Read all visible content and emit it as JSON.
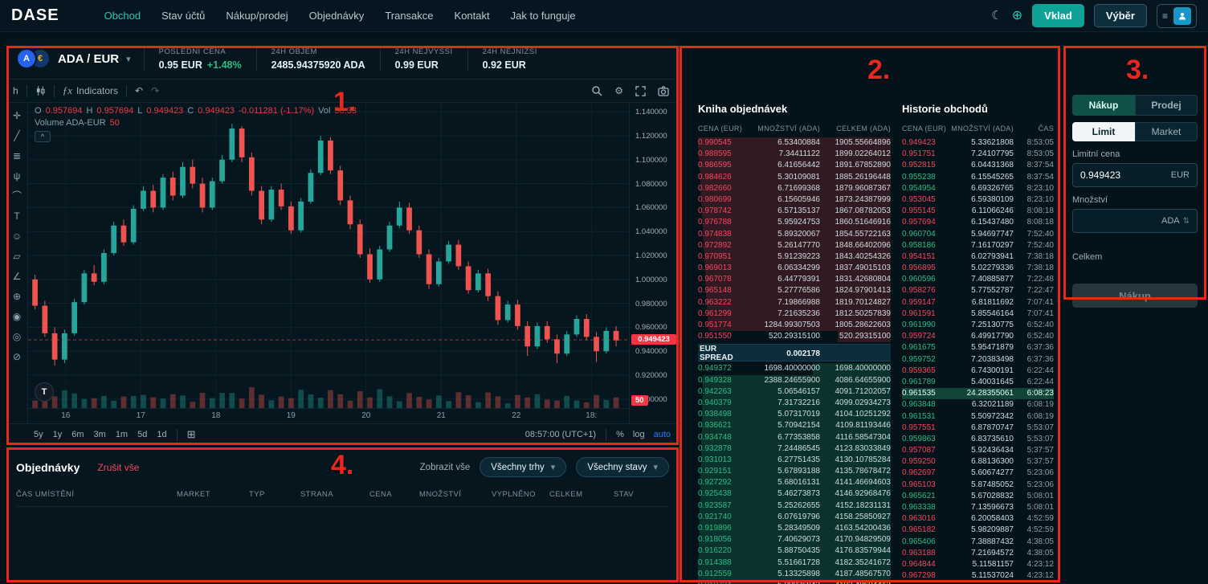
{
  "annotations": {
    "labels": [
      "1.",
      "2.",
      "3.",
      "4."
    ],
    "color": "#e8271d"
  },
  "icons": {
    "moon": "☾",
    "globe": "⊕",
    "menu": "≡",
    "chevron_down": "▾",
    "undo": "↶",
    "redo": "↷",
    "collapse": "^",
    "calendar": "⊞",
    "gear": "⚙",
    "swap": "⇅",
    "tv": "T"
  },
  "topnav": {
    "logo": "DASE",
    "links": [
      {
        "label": "Obchod",
        "active": true
      },
      {
        "label": "Stav účtů",
        "active": false
      },
      {
        "label": "Nákup/prodej",
        "active": false
      },
      {
        "label": "Objednávky",
        "active": false
      },
      {
        "label": "Transakce",
        "active": false
      },
      {
        "label": "Kontakt",
        "active": false
      },
      {
        "label": "Jak to funguje",
        "active": false
      }
    ],
    "deposit_label": "Vklad",
    "withdraw_label": "Výběr"
  },
  "market_header": {
    "pair": "ADA / EUR",
    "base_symbol": "A",
    "quote_symbol": "€",
    "stats": [
      {
        "label": "POSLEDNÍ CENA",
        "value": "0.95 EUR",
        "extra": "+1.48%"
      },
      {
        "label": "24H OBJEM",
        "value": "2485.94375920 ADA",
        "extra": ""
      },
      {
        "label": "24H NEJVYŠŠÍ",
        "value": "0.99 EUR",
        "extra": ""
      },
      {
        "label": "24H NEJNIŽŠÍ",
        "value": "0.92 EUR",
        "extra": ""
      }
    ]
  },
  "chart": {
    "toolbar": {
      "interval": "h",
      "fx": "ƒx",
      "indicators": "Indicators"
    },
    "tools": [
      {
        "name": "crosshair",
        "glyph": "✛"
      },
      {
        "name": "trend-line",
        "glyph": "╱"
      },
      {
        "name": "fib-retracement",
        "glyph": "≣"
      },
      {
        "name": "pitchfork",
        "glyph": "ψ"
      },
      {
        "name": "curve",
        "glyph": "⌒"
      },
      {
        "name": "text",
        "glyph": "T"
      },
      {
        "name": "emoji",
        "glyph": "☺"
      },
      {
        "name": "pattern",
        "glyph": "▱"
      },
      {
        "name": "measure",
        "glyph": "∠"
      },
      {
        "name": "zoom",
        "glyph": "⊕"
      },
      {
        "name": "magnet",
        "glyph": "◉"
      },
      {
        "name": "eye",
        "glyph": "◎"
      },
      {
        "name": "remove-drawings",
        "glyph": "⊘"
      }
    ],
    "legend": {
      "o_label": "O",
      "o": "0.957694",
      "h_label": "H",
      "h": "0.957694",
      "l_label": "L",
      "l": "0.949423",
      "c_label": "C",
      "c": "0.949423",
      "change": "-0.011281 (-1.17%)",
      "vol_label": "Vol",
      "vol": "50.33",
      "volume_series_label": "Volume ADA-EUR",
      "volume_value": "50"
    },
    "price_ticks": [
      "1.140000",
      "1.120000",
      "1.100000",
      "1.080000",
      "1.060000",
      "1.040000",
      "1.020000",
      "1.000000",
      "0.980000",
      "0.960000",
      "0.940000",
      "0.920000",
      "0.900000"
    ],
    "price_min": 0.8925,
    "price_max": 1.1475,
    "last_price": "0.949423",
    "last_price_value": 0.949423,
    "vol_badge": "50",
    "time_labels": [
      "16",
      "17",
      "18",
      "19",
      "20",
      "21",
      "22",
      "18:"
    ],
    "candles": [
      [
        1.0,
        1.004,
        0.975,
        0.978
      ],
      [
        0.978,
        0.982,
        0.952,
        0.955
      ],
      [
        0.955,
        0.96,
        0.928,
        0.933
      ],
      [
        0.933,
        0.958,
        0.93,
        0.955
      ],
      [
        0.955,
        0.984,
        0.953,
        0.981
      ],
      [
        0.981,
        1.008,
        0.979,
        1.005
      ],
      [
        1.005,
        1.012,
        0.995,
        0.998
      ],
      [
        0.998,
        1.025,
        0.996,
        1.022
      ],
      [
        1.022,
        1.048,
        1.02,
        1.045
      ],
      [
        1.045,
        1.05,
        1.028,
        1.031
      ],
      [
        1.031,
        1.062,
        1.029,
        1.059
      ],
      [
        1.059,
        1.078,
        1.057,
        1.074
      ],
      [
        1.074,
        1.079,
        1.056,
        1.06
      ],
      [
        1.06,
        1.088,
        1.058,
        1.085
      ],
      [
        1.085,
        1.09,
        1.066,
        1.07
      ],
      [
        1.07,
        1.098,
        1.068,
        1.094
      ],
      [
        1.094,
        1.1,
        1.076,
        1.08
      ],
      [
        1.08,
        1.085,
        1.056,
        1.06
      ],
      [
        1.06,
        1.085,
        1.058,
        1.082
      ],
      [
        1.082,
        1.104,
        1.08,
        1.1
      ],
      [
        1.1,
        1.13,
        1.098,
        1.126
      ],
      [
        1.126,
        1.128,
        1.098,
        1.102
      ],
      [
        1.102,
        1.106,
        1.07,
        1.074
      ],
      [
        1.074,
        1.078,
        1.046,
        1.05
      ],
      [
        1.05,
        1.078,
        1.048,
        1.075
      ],
      [
        1.075,
        1.08,
        1.058,
        1.061
      ],
      [
        1.061,
        1.065,
        1.038,
        1.041
      ],
      [
        1.041,
        1.068,
        1.039,
        1.065
      ],
      [
        1.065,
        1.092,
        1.063,
        1.089
      ],
      [
        1.089,
        1.12,
        1.087,
        1.116
      ],
      [
        1.116,
        1.119,
        1.088,
        1.091
      ],
      [
        1.091,
        1.095,
        1.062,
        1.066
      ],
      [
        1.066,
        1.07,
        1.042,
        1.046
      ],
      [
        1.046,
        1.05,
        1.018,
        1.021
      ],
      [
        1.021,
        1.026,
        0.997,
        1.0
      ],
      [
        1.0,
        1.028,
        0.998,
        1.025
      ],
      [
        1.025,
        1.048,
        1.023,
        1.045
      ],
      [
        1.045,
        1.065,
        1.043,
        1.06
      ],
      [
        1.06,
        1.064,
        1.038,
        1.041
      ],
      [
        1.041,
        1.045,
        1.018,
        1.021
      ],
      [
        1.021,
        1.025,
        0.992,
        0.996
      ],
      [
        0.996,
        1.018,
        0.994,
        1.015
      ],
      [
        1.015,
        1.032,
        1.013,
        1.029
      ],
      [
        1.029,
        1.033,
        1.008,
        1.011
      ],
      [
        1.011,
        1.015,
        0.988,
        0.991
      ],
      [
        0.991,
        1.008,
        0.989,
        1.005
      ],
      [
        1.005,
        1.009,
        0.982,
        0.986
      ],
      [
        0.986,
        0.99,
        0.962,
        0.966
      ],
      [
        0.966,
        0.982,
        0.964,
        0.979
      ],
      [
        0.979,
        0.983,
        0.958,
        0.961
      ],
      [
        0.961,
        0.965,
        0.936,
        0.944
      ],
      [
        0.944,
        0.964,
        0.942,
        0.961
      ],
      [
        0.961,
        0.965,
        0.947,
        0.95
      ],
      [
        0.95,
        0.954,
        0.93,
        0.938
      ],
      [
        0.938,
        0.957,
        0.936,
        0.954
      ],
      [
        0.954,
        0.97,
        0.952,
        0.967
      ],
      [
        0.967,
        0.971,
        0.949,
        0.952
      ],
      [
        0.952,
        0.956,
        0.931,
        0.94
      ],
      [
        0.94,
        0.96,
        0.938,
        0.957
      ],
      [
        0.957,
        0.961,
        0.944,
        0.949
      ]
    ],
    "ranges": [
      "5y",
      "1y",
      "6m",
      "3m",
      "1m",
      "5d",
      "1d"
    ],
    "clock": "08:57:00 (UTC+1)",
    "scale_buttons": [
      "%",
      "log",
      "auto"
    ]
  },
  "orderbook": {
    "title": "Kniha objednávek",
    "headers": [
      "CENA (EUR)",
      "MNOŽSTVÍ (ADA)",
      "CELKEM (ADA)"
    ],
    "asks": [
      [
        "0.990545",
        "6.53400884",
        "1905.55664896"
      ],
      [
        "0.988595",
        "7.34411122",
        "1899.02264012"
      ],
      [
        "0.986595",
        "6.41656442",
        "1891.67852890"
      ],
      [
        "0.984626",
        "5.30109081",
        "1885.26196448"
      ],
      [
        "0.982660",
        "6.71699368",
        "1879.96087367"
      ],
      [
        "0.980699",
        "6.15605946",
        "1873.24387999"
      ],
      [
        "0.978742",
        "6.57135137",
        "1867.08782053"
      ],
      [
        "0.976788",
        "5.95924753",
        "1860.51646916"
      ],
      [
        "0.974838",
        "5.89320067",
        "1854.55722163"
      ],
      [
        "0.972892",
        "5.26147770",
        "1848.66402096"
      ],
      [
        "0.970951",
        "5.91239223",
        "1843.40254326"
      ],
      [
        "0.969013",
        "6.06334299",
        "1837.49015103"
      ],
      [
        "0.967078",
        "6.44779391",
        "1831.42680804"
      ],
      [
        "0.965148",
        "5.27776586",
        "1824.97901413"
      ],
      [
        "0.963222",
        "7.19866988",
        "1819.70124827"
      ],
      [
        "0.961299",
        "7.21635236",
        "1812.50257839"
      ],
      [
        "0.951774",
        "1284.99307503",
        "1805.28622603"
      ],
      [
        "0.951550",
        "520.29315100",
        "520.29315100"
      ]
    ],
    "spread_label": "EUR SPREAD",
    "spread_value": "0.002178",
    "bids": [
      [
        "0.949372",
        "1698.40000000",
        "1698.40000000"
      ],
      [
        "0.949328",
        "2388.24655900",
        "4086.64655900"
      ],
      [
        "0.942263",
        "5.06546157",
        "4091.71202057"
      ],
      [
        "0.940379",
        "7.31732216",
        "4099.02934273"
      ],
      [
        "0.938498",
        "5.07317019",
        "4104.10251292"
      ],
      [
        "0.936621",
        "5.70942154",
        "4109.81193446"
      ],
      [
        "0.934748",
        "6.77353858",
        "4116.58547304"
      ],
      [
        "0.932878",
        "7.24486545",
        "4123.83033849"
      ],
      [
        "0.931013",
        "6.27751435",
        "4130.10785284"
      ],
      [
        "0.929151",
        "5.67893188",
        "4135.78678472"
      ],
      [
        "0.927292",
        "5.68016131",
        "4141.46694603"
      ],
      [
        "0.925438",
        "5.46273873",
        "4146.92968476"
      ],
      [
        "0.923587",
        "5.25262655",
        "4152.18231131"
      ],
      [
        "0.921740",
        "6.07619796",
        "4158.25850927"
      ],
      [
        "0.919896",
        "5.28349509",
        "4163.54200436"
      ],
      [
        "0.918056",
        "7.40629073",
        "4170.94829509"
      ],
      [
        "0.916220",
        "5.88750435",
        "4176.83579944"
      ],
      [
        "0.914388",
        "5.51661728",
        "4182.35241672"
      ],
      [
        "0.912559",
        "5.13325898",
        "4187.48567570"
      ],
      [
        "0.910734",
        "5.00036842",
        "4192.48604412"
      ]
    ]
  },
  "history": {
    "title": "Historie obchodů",
    "headers": [
      "CENA (EUR)",
      "MNOŽSTVÍ (ADA)",
      "ČAS"
    ],
    "rows": [
      {
        "price": "0.949423",
        "amount": "5.33621808",
        "time": "8:53:05",
        "side": "down",
        "highlight": false
      },
      {
        "price": "0.951751",
        "amount": "7.24107795",
        "time": "8:53:05",
        "side": "down",
        "highlight": false
      },
      {
        "price": "0.952815",
        "amount": "6.04431368",
        "time": "8:37:54",
        "side": "down",
        "highlight": false
      },
      {
        "price": "0.955238",
        "amount": "6.15545265",
        "time": "8:37:54",
        "side": "up",
        "highlight": false
      },
      {
        "price": "0.954954",
        "amount": "6.69326765",
        "time": "8:23:10",
        "side": "up",
        "highlight": false
      },
      {
        "price": "0.953045",
        "amount": "6.59380109",
        "time": "8:23:10",
        "side": "down",
        "highlight": false
      },
      {
        "price": "0.955145",
        "amount": "6.11066246",
        "time": "8:08:18",
        "side": "down",
        "highlight": false
      },
      {
        "price": "0.957694",
        "amount": "6.15437480",
        "time": "8:08:18",
        "side": "down",
        "highlight": false
      },
      {
        "price": "0.960704",
        "amount": "5.94697747",
        "time": "7:52:40",
        "side": "up",
        "highlight": false
      },
      {
        "price": "0.958186",
        "amount": "7.16170297",
        "time": "7:52:40",
        "side": "up",
        "highlight": false
      },
      {
        "price": "0.954151",
        "amount": "6.02793941",
        "time": "7:38:18",
        "side": "down",
        "highlight": false
      },
      {
        "price": "0.956895",
        "amount": "5.02279336",
        "time": "7:38:18",
        "side": "down",
        "highlight": false
      },
      {
        "price": "0.960596",
        "amount": "7.40885877",
        "time": "7:22:48",
        "side": "up",
        "highlight": false
      },
      {
        "price": "0.958276",
        "amount": "5.77552787",
        "time": "7:22:47",
        "side": "down",
        "highlight": false
      },
      {
        "price": "0.959147",
        "amount": "6.81811692",
        "time": "7:07:41",
        "side": "down",
        "highlight": false
      },
      {
        "price": "0.961591",
        "amount": "5.85546164",
        "time": "7:07:41",
        "side": "down",
        "highlight": false
      },
      {
        "price": "0.961990",
        "amount": "7.25130775",
        "time": "6:52:40",
        "side": "up",
        "highlight": false
      },
      {
        "price": "0.959724",
        "amount": "6.49917790",
        "time": "6:52:40",
        "side": "down",
        "highlight": false
      },
      {
        "price": "0.961675",
        "amount": "5.95471879",
        "time": "6:37:36",
        "side": "up",
        "highlight": false
      },
      {
        "price": "0.959752",
        "amount": "7.20383498",
        "time": "6:37:36",
        "side": "up",
        "highlight": false
      },
      {
        "price": "0.959365",
        "amount": "6.74300191",
        "time": "6:22:44",
        "side": "down",
        "highlight": false
      },
      {
        "price": "0.961789",
        "amount": "5.40031645",
        "time": "6:22:44",
        "side": "up",
        "highlight": false
      },
      {
        "price": "0.961535",
        "amount": "24.28355061",
        "time": "6:08:23",
        "side": "up",
        "highlight": true
      },
      {
        "price": "0.963848",
        "amount": "6.32021189",
        "time": "6:08:19",
        "side": "up",
        "highlight": false
      },
      {
        "price": "0.961531",
        "amount": "5.50972342",
        "time": "6:08:19",
        "side": "up",
        "highlight": false
      },
      {
        "price": "0.957551",
        "amount": "6.87870747",
        "time": "5:53:07",
        "side": "down",
        "highlight": false
      },
      {
        "price": "0.959863",
        "amount": "6.83735610",
        "time": "5:53:07",
        "side": "up",
        "highlight": false
      },
      {
        "price": "0.957087",
        "amount": "5.92436434",
        "time": "5:37:57",
        "side": "down",
        "highlight": false
      },
      {
        "price": "0.959250",
        "amount": "6.88136300",
        "time": "5:37:57",
        "side": "down",
        "highlight": false
      },
      {
        "price": "0.962697",
        "amount": "5.60674277",
        "time": "5:23:06",
        "side": "down",
        "highlight": false
      },
      {
        "price": "0.965103",
        "amount": "5.87485052",
        "time": "5:23:06",
        "side": "down",
        "highlight": false
      },
      {
        "price": "0.965621",
        "amount": "5.67028832",
        "time": "5:08:01",
        "side": "up",
        "highlight": false
      },
      {
        "price": "0.963338",
        "amount": "7.13596673",
        "time": "5:08:01",
        "side": "up",
        "highlight": false
      },
      {
        "price": "0.963016",
        "amount": "6.20058403",
        "time": "4:52:59",
        "side": "down",
        "highlight": false
      },
      {
        "price": "0.965182",
        "amount": "5.98209887",
        "time": "4:52:59",
        "side": "down",
        "highlight": false
      },
      {
        "price": "0.965406",
        "amount": "7.38887432",
        "time": "4:38:05",
        "side": "up",
        "highlight": false
      },
      {
        "price": "0.963188",
        "amount": "7.21694572",
        "time": "4:38:05",
        "side": "down",
        "highlight": false
      },
      {
        "price": "0.964844",
        "amount": "5.11581157",
        "time": "4:23:12",
        "side": "down",
        "highlight": false
      },
      {
        "price": "0.967298",
        "amount": "5.11537024",
        "time": "4:23:12",
        "side": "down",
        "highlight": false
      }
    ]
  },
  "trade_panel": {
    "tabs": [
      "Nákup",
      "Prodej"
    ],
    "order_types": [
      "Limit",
      "Market"
    ],
    "limit_price_label": "Limitní cena",
    "limit_price_value": "0.949423",
    "limit_price_unit": "EUR",
    "amount_label": "Množství",
    "amount_value": "",
    "amount_unit": "ADA",
    "total_label": "Celkem",
    "submit_label": "Nákup"
  },
  "orders": {
    "title": "Objednávky",
    "cancel_all": "Zrušit vše",
    "show_all": "Zobrazit vše",
    "filters": [
      "Všechny trhy",
      "Všechny stavy"
    ],
    "headers": [
      "ČAS UMÍSTĚNÍ",
      "MARKET",
      "TYP",
      "STRANA",
      "CENA",
      "MNOŽSTVÍ",
      "VYPLNĚNO",
      "CELKEM",
      "STAV"
    ]
  }
}
